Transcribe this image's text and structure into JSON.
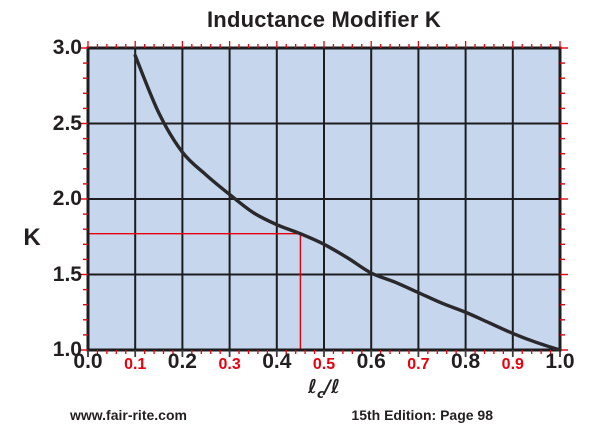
{
  "title": "Inductance Modifier K",
  "footer": {
    "website": "www.fair-rite.com",
    "edition": "15th Edition: Page 98"
  },
  "colors": {
    "page_bg": "#ffffff",
    "plot_bg": "#c6d6ec",
    "grid": "#1d1d1f",
    "curve": "#2a282b",
    "accent_red": "#e8000d",
    "text": "#231f20",
    "major_tick_dark": "#3c3c3e"
  },
  "chart_data": {
    "type": "line",
    "title": "Inductance Modifier K",
    "ylabel": "K",
    "xlabel": {
      "pre": "ℓ",
      "sub": "c",
      "post": "/ℓ"
    },
    "xlim": [
      0.0,
      1.0
    ],
    "ylim": [
      1.0,
      3.0
    ],
    "grid": true,
    "legend_position": "none",
    "x_ticks": [
      {
        "value": 0.0,
        "label": "0.0",
        "red": false
      },
      {
        "value": 0.1,
        "label": "0.1",
        "red": true
      },
      {
        "value": 0.2,
        "label": "0.2",
        "red": false
      },
      {
        "value": 0.3,
        "label": "0.3",
        "red": true
      },
      {
        "value": 0.4,
        "label": "0.4",
        "red": false
      },
      {
        "value": 0.5,
        "label": "0.5",
        "red": true
      },
      {
        "value": 0.6,
        "label": "0.6",
        "red": false
      },
      {
        "value": 0.7,
        "label": "0.7",
        "red": true
      },
      {
        "value": 0.8,
        "label": "0.8",
        "red": false
      },
      {
        "value": 0.9,
        "label": "0.9",
        "red": true
      },
      {
        "value": 1.0,
        "label": "1.0",
        "red": false
      }
    ],
    "y_ticks": [
      {
        "value": 3.0,
        "label": "3.0"
      },
      {
        "value": 2.5,
        "label": "2.5"
      },
      {
        "value": 2.0,
        "label": "2.0"
      },
      {
        "value": 1.5,
        "label": "1.5"
      },
      {
        "value": 1.0,
        "label": "1.0"
      }
    ],
    "grid_steps": {
      "x": 0.1,
      "y": 0.5
    },
    "minor_tick_steps": {
      "x": 0.02,
      "y": 0.1
    },
    "series": [
      {
        "name": "K",
        "points": [
          [
            0.1,
            2.95
          ],
          [
            0.15,
            2.57
          ],
          [
            0.2,
            2.31
          ],
          [
            0.25,
            2.16
          ],
          [
            0.3,
            2.03
          ],
          [
            0.35,
            1.91
          ],
          [
            0.4,
            1.83
          ],
          [
            0.45,
            1.77
          ],
          [
            0.5,
            1.7
          ],
          [
            0.55,
            1.61
          ],
          [
            0.6,
            1.51
          ],
          [
            0.65,
            1.45
          ],
          [
            0.7,
            1.38
          ],
          [
            0.75,
            1.31
          ],
          [
            0.8,
            1.25
          ],
          [
            0.85,
            1.18
          ],
          [
            0.9,
            1.11
          ],
          [
            0.95,
            1.05
          ],
          [
            1.0,
            1.0
          ]
        ]
      }
    ],
    "reference_marker": {
      "x": 0.45,
      "k": 1.77
    }
  }
}
